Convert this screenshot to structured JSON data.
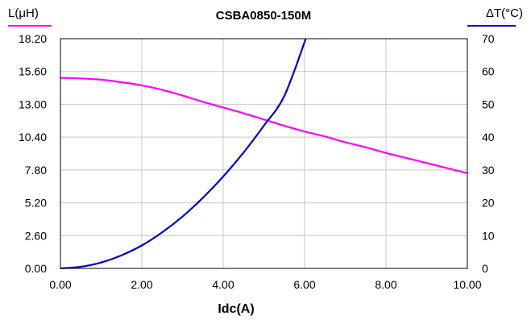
{
  "chart_data": {
    "type": "line",
    "title": "CSBA0850-150M",
    "xlabel": "Idc(A)",
    "ylabel_left": "L(μH)",
    "ylabel_right": "ΔT(°C)",
    "xlim": [
      0,
      10
    ],
    "ylim_left": [
      0,
      18.2
    ],
    "ylim_right": [
      0,
      70
    ],
    "x_ticks": [
      "0.00",
      "2.00",
      "4.00",
      "6.00",
      "8.00",
      "10.00"
    ],
    "y_left_ticks": [
      "0.00",
      "2.60",
      "5.20",
      "7.80",
      "10.40",
      "13.00",
      "15.60",
      "18.20"
    ],
    "y_right_ticks": [
      "0",
      "10",
      "20",
      "30",
      "40",
      "50",
      "60",
      "70"
    ],
    "grid": true,
    "series": [
      {
        "name": "L(μH)",
        "axis": "left",
        "color": "#ff00ff",
        "x": [
          0,
          0.5,
          1,
          1.5,
          2,
          2.5,
          3,
          3.5,
          4,
          4.5,
          5,
          5.5,
          6,
          6.5,
          7,
          7.5,
          8,
          8.5,
          9,
          9.5,
          10
        ],
        "y": [
          15.1,
          15.05,
          14.95,
          14.75,
          14.5,
          14.15,
          13.7,
          13.2,
          12.75,
          12.3,
          11.8,
          11.3,
          10.85,
          10.45,
          10.0,
          9.6,
          9.15,
          8.75,
          8.35,
          7.95,
          7.55
        ]
      },
      {
        "name": "ΔT(°C)",
        "axis": "right",
        "color": "#0000cc",
        "x": [
          0,
          0.5,
          1,
          1.5,
          2,
          2.5,
          3,
          3.5,
          4,
          4.5,
          5,
          5.5,
          6.03
        ],
        "y": [
          0,
          0.5,
          1.8,
          4.0,
          7.0,
          11.0,
          15.8,
          21.5,
          28.0,
          35.3,
          43.5,
          52.5,
          70
        ]
      }
    ]
  }
}
